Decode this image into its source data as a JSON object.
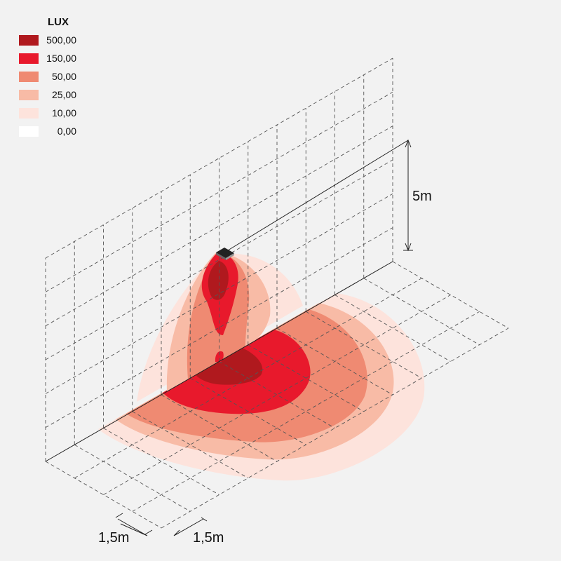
{
  "legend": {
    "title": "LUX",
    "items": [
      {
        "label": "500,00",
        "color": "#b0191e"
      },
      {
        "label": "150,00",
        "color": "#e8192c"
      },
      {
        "label": "50,00",
        "color": "#ef8a72"
      },
      {
        "label": "25,00",
        "color": "#f8bba6"
      },
      {
        "label": "10,00",
        "color": "#fde3dc"
      },
      {
        "label": "0,00",
        "color": "#ffffff"
      }
    ]
  },
  "dimensions": {
    "height": "5m",
    "grid_x": "1,5m",
    "grid_y": "1,5m"
  }
}
